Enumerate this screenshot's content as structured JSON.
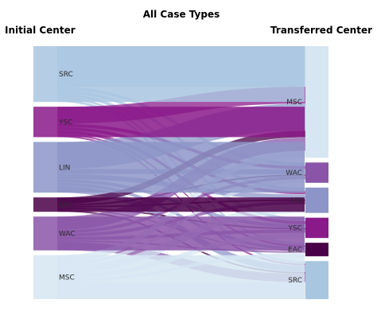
{
  "chart_data": {
    "type": "sankey",
    "title": "All Case Types",
    "left_header": "Initial Center",
    "right_header": "Transferred Center",
    "colors": {
      "SRC": "#a9c6e0",
      "YSC": "#8a198a",
      "LIN": "#8d95c8",
      "EAC": "#4a0048",
      "WAC": "#8a55a8",
      "MSC": "#d6e6f2"
    },
    "source_nodes": [
      "SRC",
      "YSC",
      "LIN",
      "EAC",
      "WAC",
      "MSC"
    ],
    "target_nodes": [
      "MSC",
      "WAC",
      "LIN",
      "YSC",
      "EAC",
      "SRC"
    ],
    "flows": [
      {
        "source": "SRC",
        "target": "MSC",
        "value": 24
      },
      {
        "source": "SRC",
        "target": "WAC",
        "value": 2
      },
      {
        "source": "SRC",
        "target": "LIN",
        "value": 2
      },
      {
        "source": "SRC",
        "target": "YSC",
        "value": 2
      },
      {
        "source": "SRC",
        "target": "EAC",
        "value": 1.5
      },
      {
        "source": "SRC",
        "target": "SRC",
        "value": 1.5
      },
      {
        "source": "YSC",
        "target": "MSC",
        "value": 10
      },
      {
        "source": "YSC",
        "target": "WAC",
        "value": 2
      },
      {
        "source": "YSC",
        "target": "LIN",
        "value": 2
      },
      {
        "source": "YSC",
        "target": "YSC",
        "value": 2
      },
      {
        "source": "YSC",
        "target": "EAC",
        "value": 1
      },
      {
        "source": "YSC",
        "target": "SRC",
        "value": 1
      },
      {
        "source": "LIN",
        "target": "MSC",
        "value": 16
      },
      {
        "source": "LIN",
        "target": "WAC",
        "value": 3
      },
      {
        "source": "LIN",
        "target": "LIN",
        "value": 3
      },
      {
        "source": "LIN",
        "target": "YSC",
        "value": 2
      },
      {
        "source": "LIN",
        "target": "EAC",
        "value": 2
      },
      {
        "source": "LIN",
        "target": "SRC",
        "value": 4
      },
      {
        "source": "EAC",
        "target": "MSC",
        "value": 4
      },
      {
        "source": "EAC",
        "target": "WAC",
        "value": 1
      },
      {
        "source": "EAC",
        "target": "LIN",
        "value": 1
      },
      {
        "source": "EAC",
        "target": "YSC",
        "value": 1
      },
      {
        "source": "EAC",
        "target": "EAC",
        "value": 0.5
      },
      {
        "source": "EAC",
        "target": "SRC",
        "value": 1
      },
      {
        "source": "WAC",
        "target": "MSC",
        "value": 8
      },
      {
        "source": "WAC",
        "target": "WAC",
        "value": 2
      },
      {
        "source": "WAC",
        "target": "LIN",
        "value": 2
      },
      {
        "source": "WAC",
        "target": "YSC",
        "value": 2
      },
      {
        "source": "WAC",
        "target": "EAC",
        "value": 1
      },
      {
        "source": "WAC",
        "target": "SRC",
        "value": 5
      },
      {
        "source": "MSC",
        "target": "MSC",
        "value": 4
      },
      {
        "source": "MSC",
        "target": "WAC",
        "value": 2
      },
      {
        "source": "MSC",
        "target": "LIN",
        "value": 5
      },
      {
        "source": "MSC",
        "target": "YSC",
        "value": 3
      },
      {
        "source": "MSC",
        "target": "EAC",
        "value": 2
      },
      {
        "source": "MSC",
        "target": "SRC",
        "value": 10
      }
    ]
  }
}
